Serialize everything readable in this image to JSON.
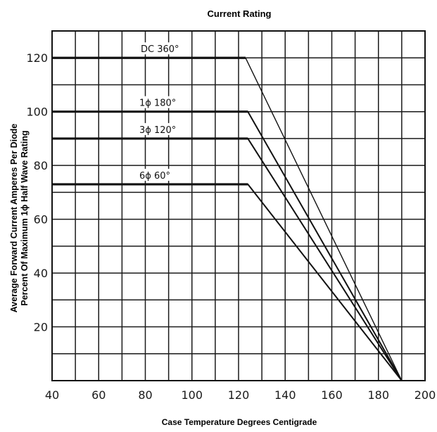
{
  "chart_data": {
    "type": "line",
    "title": "Current Rating",
    "xlabel": "Case Temperature Degrees Centigrade",
    "ylabel_line1": "Average Forward Current Amperes Per Diode",
    "ylabel_line2": "Percent Of Maximum 1ϕ Half Wave Rating",
    "xlim": [
      40,
      200
    ],
    "ylim": [
      0,
      130
    ],
    "x_ticks": [
      40,
      60,
      80,
      100,
      120,
      140,
      160,
      180,
      200
    ],
    "y_ticks": [
      20,
      40,
      60,
      80,
      100,
      120
    ],
    "grid": true,
    "series": [
      {
        "name": "DC 360°",
        "x": [
          40,
          123,
          190
        ],
        "y": [
          120,
          120,
          0
        ]
      },
      {
        "name": "1ϕ 180°",
        "x": [
          40,
          124,
          190
        ],
        "y": [
          100,
          100,
          0
        ]
      },
      {
        "name": "3ϕ 120°",
        "x": [
          40,
          124,
          190
        ],
        "y": [
          90,
          90,
          0
        ]
      },
      {
        "name": "6ϕ 60°",
        "x": [
          40,
          124,
          190
        ],
        "y": [
          73,
          73,
          0
        ]
      }
    ]
  }
}
